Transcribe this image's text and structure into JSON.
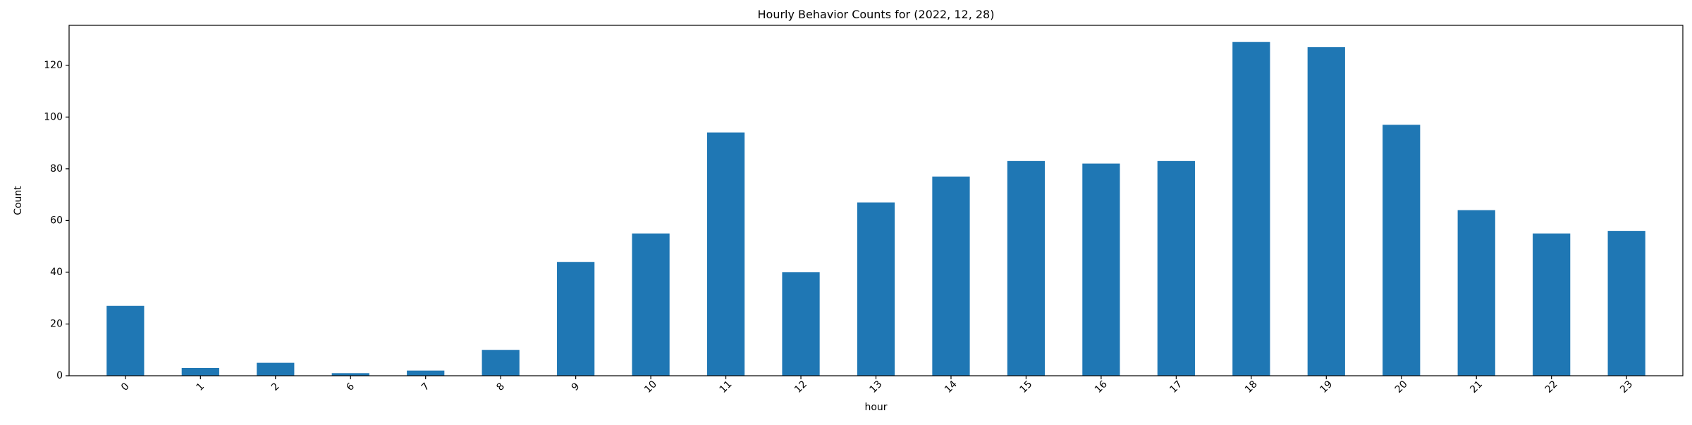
{
  "chart_data": {
    "type": "bar",
    "title": "Hourly Behavior Counts for (2022, 12, 28)",
    "xlabel": "hour",
    "ylabel": "Count",
    "categories": [
      "0",
      "1",
      "2",
      "6",
      "7",
      "8",
      "9",
      "10",
      "11",
      "12",
      "13",
      "14",
      "15",
      "16",
      "17",
      "18",
      "19",
      "20",
      "21",
      "22",
      "23"
    ],
    "values": [
      27,
      3,
      5,
      1,
      2,
      10,
      44,
      55,
      94,
      40,
      67,
      77,
      83,
      82,
      83,
      129,
      127,
      97,
      64,
      55,
      56
    ],
    "ylim": [
      0,
      135.45
    ],
    "yticks": [
      0,
      20,
      40,
      60,
      80,
      100,
      120
    ],
    "grid": false,
    "legend": false,
    "bar_color": "#1f77b4"
  }
}
